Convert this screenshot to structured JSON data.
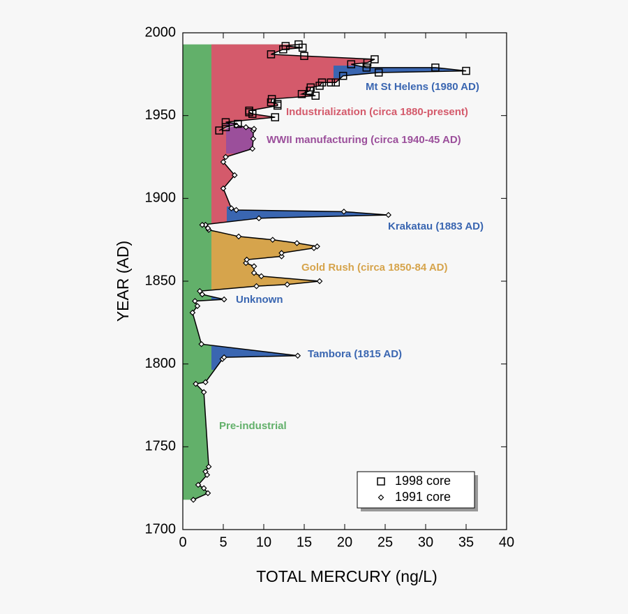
{
  "chart_data": {
    "type": "line",
    "xlabel": "TOTAL MERCURY (ng/L)",
    "ylabel": "YEAR (AD)",
    "xlim": [
      0,
      40
    ],
    "ylim": [
      1700,
      2000
    ],
    "xticks": [
      0,
      5,
      10,
      15,
      20,
      25,
      30,
      35,
      40
    ],
    "yticks": [
      1700,
      1750,
      1800,
      1850,
      1900,
      1950,
      2000
    ],
    "series": [
      {
        "name": "1991 core",
        "marker": "diamond",
        "color": "#000000",
        "x": [
          1.3,
          3.1,
          2.6,
          1.9,
          3.0,
          2.8,
          3.2,
          2.6,
          1.6,
          2.8,
          4.9,
          5.1,
          14.2,
          2.3,
          1.2,
          1.8,
          1.5,
          5.1,
          2.4,
          2.1,
          9.1,
          12.9,
          16.9,
          9.7,
          8.8,
          8.8,
          7.8,
          7.9,
          12.2,
          12.2,
          16.2,
          16.6,
          14.1,
          11.1,
          6.9,
          3.2,
          3.1,
          2.8,
          2.4,
          9.4,
          25.4,
          19.9,
          6.6,
          6.0,
          5.0,
          6.4,
          5.0,
          5.3,
          8.6,
          8.7,
          8.7,
          8.8,
          7.8,
          6.6
        ],
        "y": [
          1718,
          1722,
          1725,
          1727,
          1733,
          1735,
          1738,
          1783,
          1788,
          1789,
          1803,
          1804,
          1805,
          1812,
          1831,
          1835,
          1838,
          1839,
          1842,
          1844,
          1847,
          1848,
          1850,
          1853,
          1855,
          1859,
          1861,
          1863,
          1865,
          1867,
          1870,
          1871,
          1873,
          1875,
          1877,
          1881,
          1882,
          1884,
          1884,
          1888,
          1890,
          1892,
          1893,
          1894,
          1906,
          1914,
          1922,
          1925,
          1930,
          1936,
          1941,
          1942,
          1943,
          1944
        ]
      },
      {
        "name": "1998 core",
        "marker": "square",
        "color": "#000000",
        "x": [
          4.5,
          5.3,
          6.8,
          5.3,
          11.4,
          8.6,
          8.2,
          8.2,
          11.7,
          11.7,
          10.9,
          11.0,
          16.4,
          14.7,
          15.7,
          15.8,
          16.9,
          17.2,
          18.3,
          18.9,
          19.8,
          24.2,
          35.0,
          31.2,
          22.7,
          20.8,
          22.8,
          23.7,
          15.0,
          10.9,
          12.4,
          14.8,
          12.7,
          14.3
        ],
        "y": [
          1941,
          1943,
          1945,
          1946,
          1949,
          1951,
          1952,
          1953,
          1956,
          1957,
          1958,
          1960,
          1962,
          1963,
          1965,
          1967,
          1968,
          1970,
          1970,
          1970,
          1974,
          1976,
          1977,
          1979,
          1979,
          1981,
          1982,
          1984,
          1986,
          1987,
          1990,
          1991,
          1992,
          1993
        ]
      }
    ],
    "legend_order": [
      1,
      0
    ],
    "annotations": [
      {
        "text": "Industrialization (circa 1880-present)",
        "color": "#d45a6b"
      },
      {
        "text": "WWII manufacturing (circa 1940-45 AD)",
        "color": "#9b4f9b"
      },
      {
        "text": "Mt St Helens (1980 AD)",
        "color": "#3a66b1"
      },
      {
        "text": "Krakatau (1883 AD)",
        "color": "#3a66b1"
      },
      {
        "text": "Gold Rush (circa 1850-84 AD)",
        "color": "#d6a44c"
      },
      {
        "text": "Unknown",
        "color": "#3a66b1"
      },
      {
        "text": "Tambora (1815 AD)",
        "color": "#3a66b1"
      },
      {
        "text": "Pre-industrial",
        "color": "#62b06a"
      }
    ]
  }
}
